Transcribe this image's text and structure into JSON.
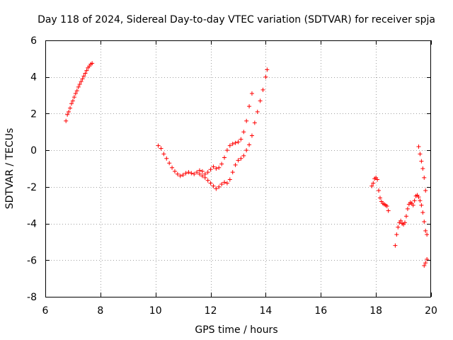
{
  "chart_data": {
    "type": "scatter",
    "title": "Day 118 of 2024, Sidereal Day-to-day VTEC variation (SDTVAR) for receiver spja",
    "xlabel": "GPS time / hours",
    "ylabel": "SDTVAR / TECUs",
    "xlim": [
      6,
      20
    ],
    "ylim": [
      -8,
      6
    ],
    "xticks": [
      6,
      8,
      10,
      12,
      14,
      16,
      18,
      20
    ],
    "yticks": [
      -8,
      -6,
      -4,
      -2,
      0,
      2,
      4,
      6
    ],
    "xtick_labels": [
      "6",
      "8",
      "10",
      "12",
      "14",
      "16",
      "18",
      "20"
    ],
    "ytick_labels": [
      "-8",
      "-6",
      "-4",
      "-2",
      "0",
      "2",
      "4",
      "6"
    ],
    "grid": true,
    "marker": "+",
    "color": "#ff0000",
    "series": [
      {
        "name": "morning-arc",
        "points": [
          [
            6.75,
            1.6
          ],
          [
            6.8,
            1.95
          ],
          [
            6.85,
            2.1
          ],
          [
            6.9,
            2.3
          ],
          [
            6.95,
            2.55
          ],
          [
            7.0,
            2.7
          ],
          [
            7.05,
            2.9
          ],
          [
            7.1,
            3.1
          ],
          [
            7.15,
            3.25
          ],
          [
            7.2,
            3.45
          ],
          [
            7.25,
            3.6
          ],
          [
            7.3,
            3.75
          ],
          [
            7.35,
            3.9
          ],
          [
            7.4,
            4.05
          ],
          [
            7.45,
            4.2
          ],
          [
            7.5,
            4.35
          ],
          [
            7.55,
            4.5
          ],
          [
            7.6,
            4.6
          ],
          [
            7.65,
            4.7
          ],
          [
            7.7,
            4.75
          ]
        ]
      },
      {
        "name": "midday-upper-track",
        "points": [
          [
            10.1,
            0.25
          ],
          [
            10.2,
            0.1
          ],
          [
            10.3,
            -0.2
          ],
          [
            10.4,
            -0.45
          ],
          [
            10.5,
            -0.7
          ],
          [
            10.6,
            -0.95
          ],
          [
            10.7,
            -1.15
          ],
          [
            10.8,
            -1.3
          ],
          [
            10.9,
            -1.4
          ],
          [
            11.0,
            -1.35
          ],
          [
            11.1,
            -1.25
          ],
          [
            11.2,
            -1.2
          ],
          [
            11.3,
            -1.25
          ],
          [
            11.4,
            -1.3
          ],
          [
            11.5,
            -1.2
          ],
          [
            11.6,
            -1.1
          ],
          [
            11.7,
            -1.15
          ],
          [
            11.8,
            -1.3
          ],
          [
            11.9,
            -1.2
          ],
          [
            12.0,
            -1.05
          ],
          [
            12.1,
            -0.9
          ],
          [
            12.2,
            -1.0
          ],
          [
            12.3,
            -0.95
          ],
          [
            12.4,
            -0.75
          ],
          [
            12.5,
            -0.4
          ],
          [
            12.6,
            0.0
          ],
          [
            12.7,
            0.25
          ],
          [
            12.8,
            0.35
          ],
          [
            12.9,
            0.4
          ],
          [
            13.0,
            0.45
          ],
          [
            13.1,
            0.6
          ],
          [
            13.2,
            1.0
          ],
          [
            13.3,
            1.6
          ],
          [
            13.4,
            2.4
          ],
          [
            13.5,
            3.1
          ]
        ]
      },
      {
        "name": "midday-lower-track",
        "points": [
          [
            11.6,
            -1.3
          ],
          [
            11.7,
            -1.4
          ],
          [
            11.8,
            -1.5
          ],
          [
            11.9,
            -1.65
          ],
          [
            12.0,
            -1.8
          ],
          [
            12.1,
            -1.95
          ],
          [
            12.2,
            -2.1
          ],
          [
            12.3,
            -2.0
          ],
          [
            12.4,
            -1.85
          ],
          [
            12.5,
            -1.75
          ],
          [
            12.6,
            -1.8
          ],
          [
            12.7,
            -1.6
          ],
          [
            12.8,
            -1.2
          ],
          [
            12.9,
            -0.8
          ],
          [
            13.0,
            -0.55
          ],
          [
            13.1,
            -0.45
          ],
          [
            13.2,
            -0.3
          ],
          [
            13.3,
            0.0
          ],
          [
            13.4,
            0.3
          ],
          [
            13.5,
            0.8
          ],
          [
            13.6,
            1.5
          ],
          [
            13.7,
            2.1
          ],
          [
            13.8,
            2.7
          ],
          [
            13.9,
            3.3
          ],
          [
            14.0,
            4.0
          ],
          [
            14.05,
            4.4
          ]
        ]
      },
      {
        "name": "evening-arc-a",
        "points": [
          [
            17.85,
            -1.95
          ],
          [
            17.9,
            -1.8
          ],
          [
            17.95,
            -1.55
          ],
          [
            18.0,
            -1.5
          ],
          [
            18.05,
            -1.6
          ],
          [
            18.1,
            -2.2
          ],
          [
            18.15,
            -2.6
          ],
          [
            18.2,
            -2.8
          ],
          [
            18.25,
            -2.9
          ],
          [
            18.3,
            -2.95
          ],
          [
            18.35,
            -3.0
          ],
          [
            18.4,
            -3.05
          ],
          [
            18.45,
            -3.3
          ]
        ]
      },
      {
        "name": "evening-arc-b",
        "points": [
          [
            18.7,
            -5.2
          ],
          [
            18.75,
            -4.6
          ],
          [
            18.8,
            -4.2
          ],
          [
            18.85,
            -3.95
          ],
          [
            18.9,
            -3.85
          ],
          [
            18.95,
            -4.0
          ],
          [
            19.0,
            -4.05
          ],
          [
            19.05,
            -3.95
          ],
          [
            19.1,
            -3.6
          ],
          [
            19.15,
            -3.2
          ],
          [
            19.2,
            -2.95
          ],
          [
            19.25,
            -2.85
          ],
          [
            19.3,
            -2.9
          ],
          [
            19.35,
            -3.0
          ],
          [
            19.4,
            -2.75
          ],
          [
            19.45,
            -2.5
          ],
          [
            19.5,
            -2.45
          ],
          [
            19.55,
            -2.55
          ],
          [
            19.6,
            -2.75
          ],
          [
            19.65,
            -3.0
          ],
          [
            19.7,
            -3.4
          ],
          [
            19.75,
            -3.9
          ],
          [
            19.8,
            -4.4
          ],
          [
            19.85,
            -4.6
          ]
        ]
      },
      {
        "name": "evening-arc-c",
        "points": [
          [
            19.55,
            0.2
          ],
          [
            19.6,
            -0.2
          ],
          [
            19.65,
            -0.6
          ],
          [
            19.7,
            -1.0
          ],
          [
            19.75,
            -1.5
          ],
          [
            19.8,
            -2.2
          ]
        ]
      },
      {
        "name": "evening-arc-d",
        "points": [
          [
            19.75,
            -6.3
          ],
          [
            19.8,
            -6.15
          ],
          [
            19.85,
            -5.95
          ]
        ]
      }
    ]
  }
}
